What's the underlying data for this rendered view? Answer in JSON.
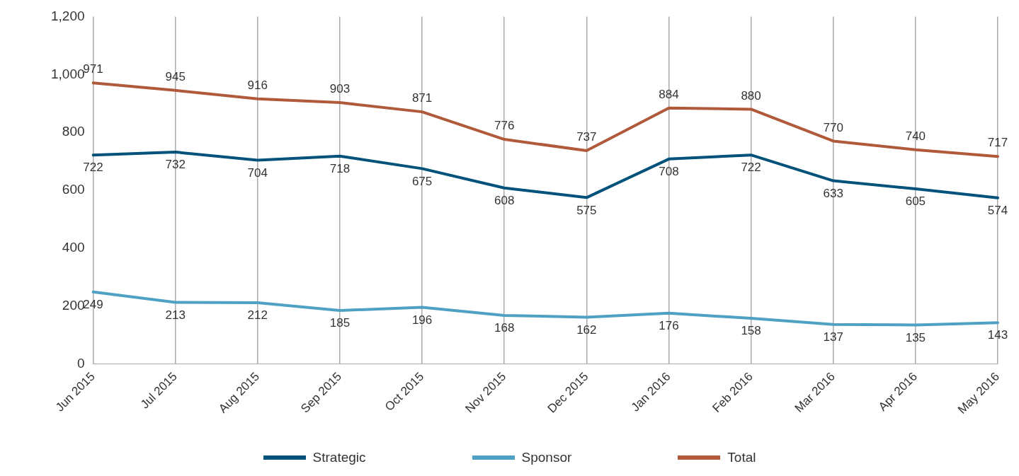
{
  "chart_data": {
    "type": "line",
    "categories": [
      "Jun 2015",
      "Jul 2015",
      "Aug 2015",
      "Sep 2015",
      "Oct 2015",
      "Nov 2015",
      "Dec 2015",
      "Jan 2016",
      "Feb 2016",
      "Mar 2016",
      "Apr 2016",
      "May 2016"
    ],
    "series": [
      {
        "name": "Strategic",
        "color": "#00527a",
        "values": [
          722,
          732,
          704,
          718,
          675,
          608,
          575,
          708,
          722,
          633,
          605,
          574
        ]
      },
      {
        "name": "Sponsor",
        "color": "#4fa1c4",
        "values": [
          249,
          213,
          212,
          185,
          196,
          168,
          162,
          176,
          158,
          137,
          135,
          143
        ]
      },
      {
        "name": "Total",
        "color": "#b05a3b",
        "values": [
          971,
          945,
          916,
          903,
          871,
          776,
          737,
          884,
          880,
          770,
          740,
          717
        ]
      }
    ],
    "ylim": [
      0,
      1200
    ],
    "yticks": [
      {
        "value": 0,
        "label": "0"
      },
      {
        "value": 200,
        "label": "200"
      },
      {
        "value": 400,
        "label": "400"
      },
      {
        "value": 600,
        "label": "600"
      },
      {
        "value": 800,
        "label": "800"
      },
      {
        "value": 1000,
        "label": "1,000"
      },
      {
        "value": 1200,
        "label": "1,200"
      }
    ],
    "grid": "x",
    "legend": "bottom",
    "marker": "none",
    "line_style": "solid",
    "data_labels": true
  }
}
